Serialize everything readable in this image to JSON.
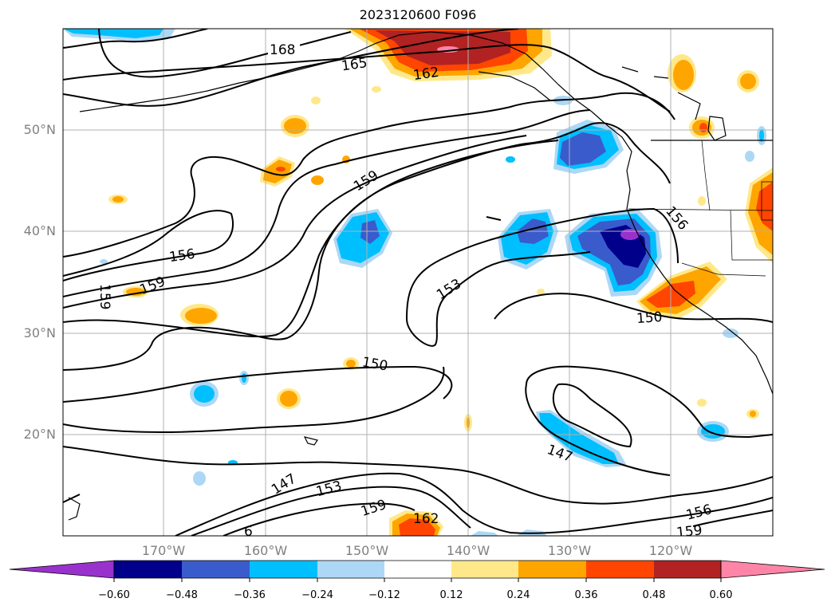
{
  "title": "2023120600 F096",
  "map": {
    "lat_ticks": [
      "50°N",
      "40°N",
      "30°N",
      "20°N"
    ],
    "lon_ticks": [
      "170°W",
      "160°W",
      "150°W",
      "140°W",
      "130°W",
      "120°W"
    ],
    "contour_labels": [
      "168",
      "165",
      "162",
      "159",
      "156",
      "159",
      "159",
      "153",
      "156",
      "150",
      "150",
      "147",
      "147",
      "153",
      "159",
      "162",
      "156",
      "159",
      "6"
    ]
  },
  "colorbar": {
    "colors": [
      "#9932cc",
      "#00008b",
      "#3a5bcc",
      "#00bfff",
      "#add8f5",
      "#ffffff",
      "#ffe88a",
      "#ffa500",
      "#ff4500",
      "#b22222",
      "#ff85a8"
    ],
    "tick_labels": [
      "−0.60",
      "−0.48",
      "−0.36",
      "−0.24",
      "−0.12",
      "0.12",
      "0.24",
      "0.36",
      "0.48",
      "0.60"
    ]
  }
}
